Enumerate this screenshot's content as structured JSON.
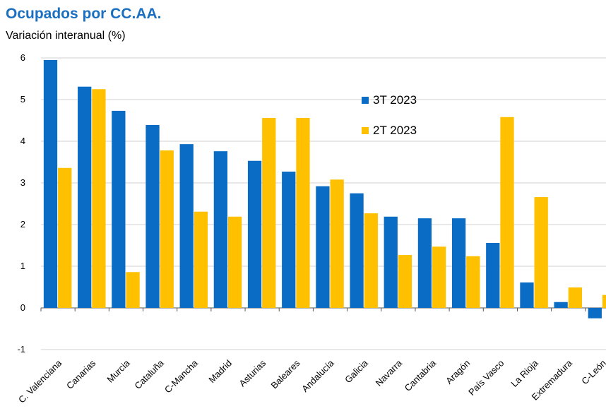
{
  "chart_data": {
    "type": "bar",
    "title": "Ocupados por CC.AA.",
    "subtitle": "Variación interanual (%)",
    "categories": [
      "C. Valenciana",
      "Canarias",
      "Murcia",
      "Cataluña",
      "C-Mancha",
      "Madrid",
      "Asturias",
      "Baleares",
      "Andalucía",
      "Galicia",
      "Navarra",
      "Cantabria",
      "Aragón",
      "País Vasco",
      "La Rioja",
      "Extremadura",
      "C-León"
    ],
    "series": [
      {
        "name": "3T 2023",
        "color": "#0a6cc4",
        "values": [
          5.95,
          5.31,
          4.73,
          4.39,
          3.93,
          3.76,
          3.53,
          3.27,
          2.92,
          2.75,
          2.19,
          2.15,
          2.15,
          1.56,
          0.61,
          0.14,
          -0.25
        ]
      },
      {
        "name": "2T 2023",
        "color": "#ffc000",
        "values": [
          3.36,
          5.25,
          0.86,
          3.78,
          2.31,
          2.19,
          4.56,
          4.56,
          3.08,
          2.27,
          1.27,
          1.47,
          1.24,
          4.58,
          2.66,
          0.49,
          0.31
        ]
      }
    ],
    "ylim": [
      -1,
      6
    ],
    "yticks": [
      -1,
      0,
      1,
      2,
      3,
      4,
      5,
      6
    ],
    "grid": true
  }
}
